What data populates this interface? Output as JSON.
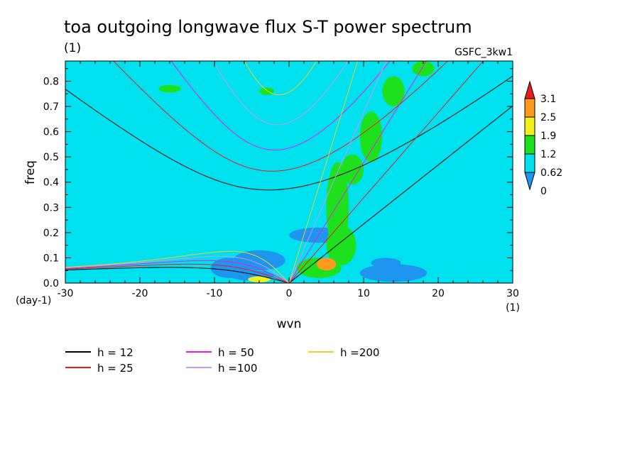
{
  "chart_data": {
    "type": "heatmap",
    "title": "toa outgoing longwave flux S-T power spectrum",
    "subtitle": "(1)",
    "run_label": "GSFC_3kw1",
    "xlabel": "wvn",
    "xunit": "(1)",
    "ylabel": "freq",
    "yunit": "(day-1)",
    "xlim": [
      -30,
      30
    ],
    "ylim": [
      0,
      0.88
    ],
    "x_ticks": [
      -30,
      -20,
      -10,
      0,
      10,
      20,
      30
    ],
    "x_tick_labels": [
      "-30",
      "-20",
      "-10",
      "0",
      "10",
      "20",
      "30"
    ],
    "y_ticks": [
      0.0,
      0.1,
      0.2,
      0.3,
      0.4,
      0.5,
      0.6,
      0.7,
      0.8
    ],
    "y_tick_labels": [
      "0.0",
      "0.1",
      "0.2",
      "0.3",
      "0.4",
      "0.5",
      "0.6",
      "0.7",
      "0.8"
    ],
    "background_fill": "#00e1f0",
    "colorbar": {
      "levels": [
        "3.1",
        "2.5",
        "1.9",
        "1.2",
        "0.62",
        "0"
      ],
      "colors": [
        "#e61e1e",
        "#ff9a1e",
        "#f0f01e",
        "#1ee11e",
        "#00e1f0",
        "#1e96f0"
      ],
      "extend": "both"
    },
    "dispersion_curves": [
      {
        "name": "h = 12",
        "h": 12,
        "color": "#000000"
      },
      {
        "name": "h = 25",
        "h": 25,
        "color": "#e61e1e"
      },
      {
        "name": "h = 50",
        "h": 50,
        "color": "#e61ee6"
      },
      {
        "name": "h =100",
        "h": 100,
        "color": "#c896f0"
      },
      {
        "name": "h =200",
        "h": 200,
        "color": "#f0d21e"
      }
    ],
    "low_regions": [
      {
        "x": -8,
        "y": 0.06,
        "rx": 2.5,
        "ry": 0.04
      },
      {
        "x": -4,
        "y": 0.09,
        "rx": 3.5,
        "ry": 0.04
      },
      {
        "x": 14,
        "y": 0.04,
        "rx": 4.5,
        "ry": 0.035
      },
      {
        "x": 4,
        "y": 0.19,
        "rx": 4.0,
        "ry": 0.03
      },
      {
        "x": -5,
        "y": 0.03,
        "rx": 3.0,
        "ry": 0.02
      },
      {
        "x": 13,
        "y": 0.08,
        "rx": 2.0,
        "ry": 0.02
      }
    ],
    "high_regions": [
      {
        "x": 6.5,
        "y": 0.3,
        "rx": 1.5,
        "ry": 0.18
      },
      {
        "x": 8.5,
        "y": 0.45,
        "rx": 1.5,
        "ry": 0.06
      },
      {
        "x": 11,
        "y": 0.58,
        "rx": 1.5,
        "ry": 0.1
      },
      {
        "x": 14,
        "y": 0.76,
        "rx": 1.5,
        "ry": 0.06
      },
      {
        "x": 18,
        "y": 0.85,
        "rx": 1.5,
        "ry": 0.03
      },
      {
        "x": 4,
        "y": 0.06,
        "rx": 3.0,
        "ry": 0.04
      },
      {
        "x": -16,
        "y": 0.77,
        "rx": 1.5,
        "ry": 0.015
      },
      {
        "x": -3,
        "y": 0.76,
        "rx": 1.0,
        "ry": 0.015
      },
      {
        "x": 7,
        "y": 0.15,
        "rx": 2.0,
        "ry": 0.08
      }
    ],
    "peak_regions": [
      {
        "x": 5,
        "y": 0.075,
        "rx": 1.3,
        "ry": 0.025,
        "level": "2.5"
      },
      {
        "x": -4,
        "y": 0.015,
        "rx": 1.5,
        "ry": 0.012,
        "level": "1.9"
      },
      {
        "x": 5,
        "y": 0.075,
        "rx": 1.0,
        "ry": 0.015,
        "level": "2.5"
      }
    ]
  }
}
